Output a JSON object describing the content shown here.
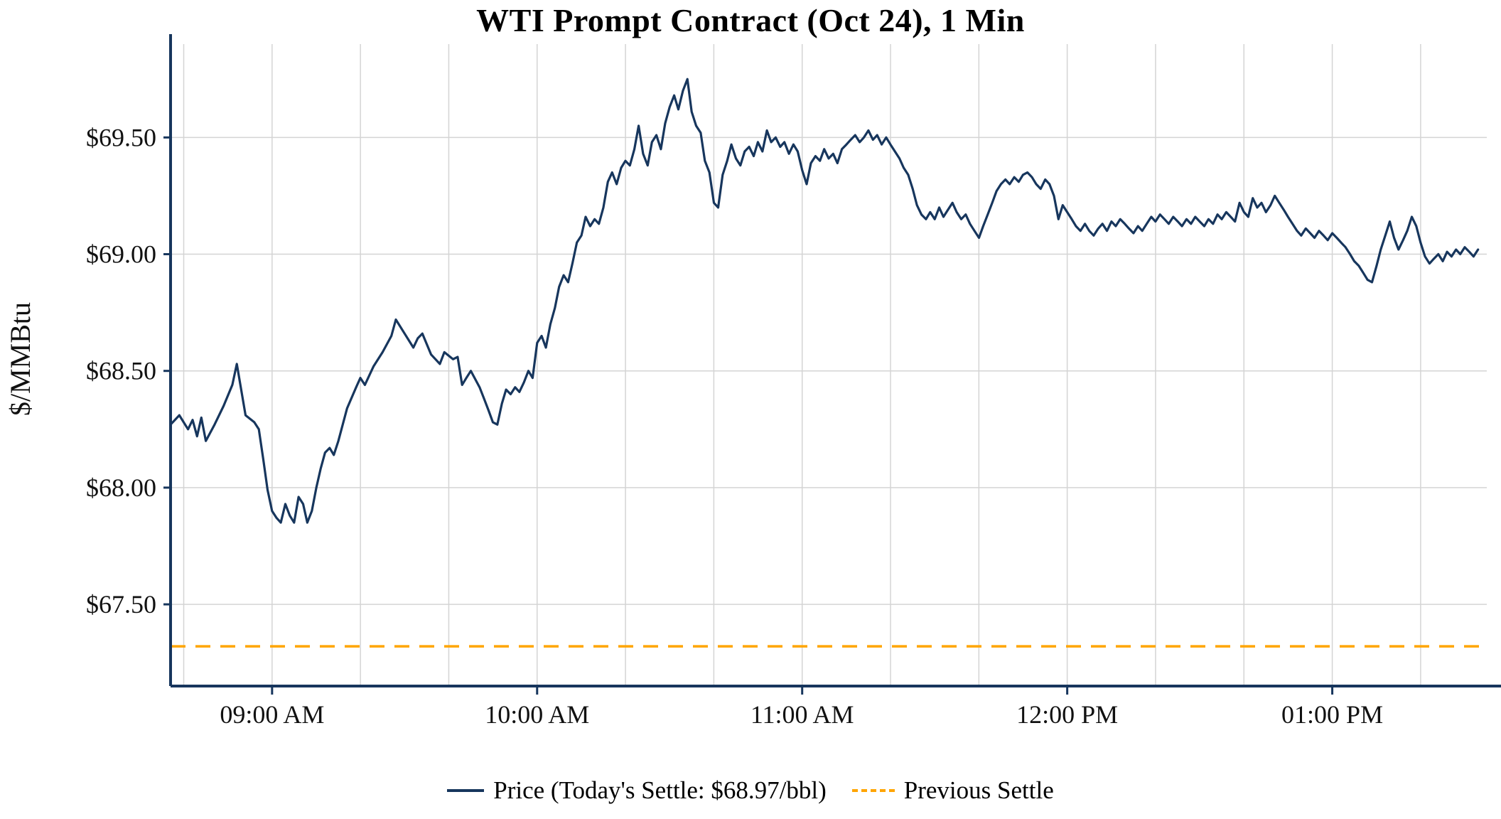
{
  "colors": {
    "price": "#17365d",
    "previous_settle": "#FFA500",
    "grid": "#d4d4d4",
    "axis": "#17365d",
    "text": "#111111"
  },
  "legend": {
    "price_label": "Price (Today's Settle: $68.97/bbl)",
    "previous_settle_label": "Previous Settle"
  },
  "chart_data": {
    "type": "line",
    "title": "WTI Prompt Contract (Oct 24), 1 Min",
    "xlabel": "",
    "ylabel": "$/MMBtu",
    "x_unit": "time_of_day_decimal_hours",
    "xlim": [
      8.617,
      13.583
    ],
    "ylim": [
      67.15,
      69.9
    ],
    "grid": true,
    "minor_x_grid_interval_hours": 0.3333,
    "xticks": [
      {
        "v": 9,
        "label": "09:00 AM"
      },
      {
        "v": 10,
        "label": "10:00 AM"
      },
      {
        "v": 11,
        "label": "11:00 AM"
      },
      {
        "v": 12,
        "label": "12:00 PM"
      },
      {
        "v": 13,
        "label": "01:00 PM"
      }
    ],
    "yticks": [
      {
        "v": 67.5,
        "label": "$67.50"
      },
      {
        "v": 68.0,
        "label": "$68.00"
      },
      {
        "v": 68.5,
        "label": "$68.50"
      },
      {
        "v": 69.0,
        "label": "$69.00"
      },
      {
        "v": 69.5,
        "label": "$69.50"
      }
    ],
    "todays_settle": 68.97,
    "previous_settle": 67.32,
    "series": [
      {
        "name": "Price",
        "style": "solid",
        "points": [
          [
            8.617,
            68.27
          ],
          [
            8.65,
            68.31
          ],
          [
            8.683,
            68.25
          ],
          [
            8.7,
            68.29
          ],
          [
            8.717,
            68.22
          ],
          [
            8.733,
            68.3
          ],
          [
            8.75,
            68.2
          ],
          [
            8.783,
            68.27
          ],
          [
            8.817,
            68.35
          ],
          [
            8.85,
            68.44
          ],
          [
            8.867,
            68.53
          ],
          [
            8.9,
            68.31
          ],
          [
            8.933,
            68.28
          ],
          [
            8.95,
            68.25
          ],
          [
            8.967,
            68.12
          ],
          [
            8.983,
            67.99
          ],
          [
            9.0,
            67.9
          ],
          [
            9.017,
            67.87
          ],
          [
            9.033,
            67.85
          ],
          [
            9.05,
            67.93
          ],
          [
            9.067,
            67.88
          ],
          [
            9.083,
            67.85
          ],
          [
            9.1,
            67.96
          ],
          [
            9.117,
            67.93
          ],
          [
            9.133,
            67.85
          ],
          [
            9.15,
            67.9
          ],
          [
            9.167,
            68.0
          ],
          [
            9.183,
            68.08
          ],
          [
            9.2,
            68.15
          ],
          [
            9.217,
            68.17
          ],
          [
            9.233,
            68.14
          ],
          [
            9.25,
            68.2
          ],
          [
            9.283,
            68.34
          ],
          [
            9.317,
            68.43
          ],
          [
            9.333,
            68.47
          ],
          [
            9.35,
            68.44
          ],
          [
            9.383,
            68.52
          ],
          [
            9.417,
            68.58
          ],
          [
            9.45,
            68.65
          ],
          [
            9.467,
            68.72
          ],
          [
            9.5,
            68.66
          ],
          [
            9.533,
            68.6
          ],
          [
            9.55,
            68.64
          ],
          [
            9.567,
            68.66
          ],
          [
            9.6,
            68.57
          ],
          [
            9.633,
            68.53
          ],
          [
            9.65,
            68.58
          ],
          [
            9.683,
            68.55
          ],
          [
            9.7,
            68.56
          ],
          [
            9.717,
            68.44
          ],
          [
            9.733,
            68.47
          ],
          [
            9.75,
            68.5
          ],
          [
            9.783,
            68.43
          ],
          [
            9.8,
            68.38
          ],
          [
            9.817,
            68.33
          ],
          [
            9.833,
            68.28
          ],
          [
            9.85,
            68.27
          ],
          [
            9.867,
            68.36
          ],
          [
            9.883,
            68.42
          ],
          [
            9.9,
            68.4
          ],
          [
            9.917,
            68.43
          ],
          [
            9.933,
            68.41
          ],
          [
            9.95,
            68.45
          ],
          [
            9.967,
            68.5
          ],
          [
            9.983,
            68.47
          ],
          [
            10.0,
            68.62
          ],
          [
            10.017,
            68.65
          ],
          [
            10.033,
            68.6
          ],
          [
            10.05,
            68.7
          ],
          [
            10.067,
            68.77
          ],
          [
            10.083,
            68.86
          ],
          [
            10.1,
            68.91
          ],
          [
            10.117,
            68.88
          ],
          [
            10.133,
            68.96
          ],
          [
            10.15,
            69.05
          ],
          [
            10.167,
            69.08
          ],
          [
            10.183,
            69.16
          ],
          [
            10.2,
            69.12
          ],
          [
            10.217,
            69.15
          ],
          [
            10.233,
            69.13
          ],
          [
            10.25,
            69.2
          ],
          [
            10.267,
            69.31
          ],
          [
            10.283,
            69.35
          ],
          [
            10.3,
            69.3
          ],
          [
            10.317,
            69.37
          ],
          [
            10.333,
            69.4
          ],
          [
            10.35,
            69.38
          ],
          [
            10.367,
            69.45
          ],
          [
            10.383,
            69.55
          ],
          [
            10.4,
            69.43
          ],
          [
            10.417,
            69.38
          ],
          [
            10.433,
            69.48
          ],
          [
            10.45,
            69.51
          ],
          [
            10.467,
            69.45
          ],
          [
            10.483,
            69.56
          ],
          [
            10.5,
            69.63
          ],
          [
            10.517,
            69.68
          ],
          [
            10.533,
            69.62
          ],
          [
            10.55,
            69.7
          ],
          [
            10.567,
            69.75
          ],
          [
            10.583,
            69.61
          ],
          [
            10.6,
            69.55
          ],
          [
            10.617,
            69.52
          ],
          [
            10.633,
            69.4
          ],
          [
            10.65,
            69.35
          ],
          [
            10.667,
            69.22
          ],
          [
            10.683,
            69.2
          ],
          [
            10.7,
            69.34
          ],
          [
            10.717,
            69.4
          ],
          [
            10.733,
            69.47
          ],
          [
            10.75,
            69.41
          ],
          [
            10.767,
            69.38
          ],
          [
            10.783,
            69.44
          ],
          [
            10.8,
            69.46
          ],
          [
            10.817,
            69.42
          ],
          [
            10.833,
            69.48
          ],
          [
            10.85,
            69.44
          ],
          [
            10.867,
            69.53
          ],
          [
            10.883,
            69.48
          ],
          [
            10.9,
            69.5
          ],
          [
            10.917,
            69.46
          ],
          [
            10.933,
            69.48
          ],
          [
            10.95,
            69.43
          ],
          [
            10.967,
            69.47
          ],
          [
            10.983,
            69.44
          ],
          [
            11.0,
            69.36
          ],
          [
            11.017,
            69.3
          ],
          [
            11.033,
            69.39
          ],
          [
            11.05,
            69.42
          ],
          [
            11.067,
            69.4
          ],
          [
            11.083,
            69.45
          ],
          [
            11.1,
            69.41
          ],
          [
            11.117,
            69.43
          ],
          [
            11.133,
            69.39
          ],
          [
            11.15,
            69.45
          ],
          [
            11.167,
            69.47
          ],
          [
            11.183,
            69.49
          ],
          [
            11.2,
            69.51
          ],
          [
            11.217,
            69.48
          ],
          [
            11.233,
            69.5
          ],
          [
            11.25,
            69.53
          ],
          [
            11.267,
            69.49
          ],
          [
            11.283,
            69.51
          ],
          [
            11.3,
            69.47
          ],
          [
            11.317,
            69.5
          ],
          [
            11.333,
            69.47
          ],
          [
            11.35,
            69.44
          ],
          [
            11.367,
            69.41
          ],
          [
            11.383,
            69.37
          ],
          [
            11.4,
            69.34
          ],
          [
            11.417,
            69.28
          ],
          [
            11.433,
            69.21
          ],
          [
            11.45,
            69.17
          ],
          [
            11.467,
            69.15
          ],
          [
            11.483,
            69.18
          ],
          [
            11.5,
            69.15
          ],
          [
            11.517,
            69.2
          ],
          [
            11.533,
            69.16
          ],
          [
            11.55,
            69.19
          ],
          [
            11.567,
            69.22
          ],
          [
            11.583,
            69.18
          ],
          [
            11.6,
            69.15
          ],
          [
            11.617,
            69.17
          ],
          [
            11.633,
            69.13
          ],
          [
            11.65,
            69.1
          ],
          [
            11.667,
            69.07
          ],
          [
            11.683,
            69.12
          ],
          [
            11.7,
            69.17
          ],
          [
            11.717,
            69.22
          ],
          [
            11.733,
            69.27
          ],
          [
            11.75,
            69.3
          ],
          [
            11.767,
            69.32
          ],
          [
            11.783,
            69.3
          ],
          [
            11.8,
            69.33
          ],
          [
            11.817,
            69.31
          ],
          [
            11.833,
            69.34
          ],
          [
            11.85,
            69.35
          ],
          [
            11.867,
            69.33
          ],
          [
            11.883,
            69.3
          ],
          [
            11.9,
            69.28
          ],
          [
            11.917,
            69.32
          ],
          [
            11.933,
            69.3
          ],
          [
            11.95,
            69.25
          ],
          [
            11.967,
            69.15
          ],
          [
            11.983,
            69.21
          ],
          [
            12.0,
            69.18
          ],
          [
            12.017,
            69.15
          ],
          [
            12.033,
            69.12
          ],
          [
            12.05,
            69.1
          ],
          [
            12.067,
            69.13
          ],
          [
            12.083,
            69.1
          ],
          [
            12.1,
            69.08
          ],
          [
            12.117,
            69.11
          ],
          [
            12.133,
            69.13
          ],
          [
            12.15,
            69.1
          ],
          [
            12.167,
            69.14
          ],
          [
            12.183,
            69.12
          ],
          [
            12.2,
            69.15
          ],
          [
            12.217,
            69.13
          ],
          [
            12.233,
            69.11
          ],
          [
            12.25,
            69.09
          ],
          [
            12.267,
            69.12
          ],
          [
            12.283,
            69.1
          ],
          [
            12.3,
            69.13
          ],
          [
            12.317,
            69.16
          ],
          [
            12.333,
            69.14
          ],
          [
            12.35,
            69.17
          ],
          [
            12.367,
            69.15
          ],
          [
            12.383,
            69.13
          ],
          [
            12.4,
            69.16
          ],
          [
            12.417,
            69.14
          ],
          [
            12.433,
            69.12
          ],
          [
            12.45,
            69.15
          ],
          [
            12.467,
            69.13
          ],
          [
            12.483,
            69.16
          ],
          [
            12.5,
            69.14
          ],
          [
            12.517,
            69.12
          ],
          [
            12.533,
            69.15
          ],
          [
            12.55,
            69.13
          ],
          [
            12.567,
            69.17
          ],
          [
            12.583,
            69.15
          ],
          [
            12.6,
            69.18
          ],
          [
            12.617,
            69.16
          ],
          [
            12.633,
            69.14
          ],
          [
            12.65,
            69.22
          ],
          [
            12.667,
            69.18
          ],
          [
            12.683,
            69.16
          ],
          [
            12.7,
            69.24
          ],
          [
            12.717,
            69.2
          ],
          [
            12.733,
            69.22
          ],
          [
            12.75,
            69.18
          ],
          [
            12.767,
            69.21
          ],
          [
            12.783,
            69.25
          ],
          [
            12.8,
            69.22
          ],
          [
            12.817,
            69.19
          ],
          [
            12.833,
            69.16
          ],
          [
            12.85,
            69.13
          ],
          [
            12.867,
            69.1
          ],
          [
            12.883,
            69.08
          ],
          [
            12.9,
            69.11
          ],
          [
            12.917,
            69.09
          ],
          [
            12.933,
            69.07
          ],
          [
            12.95,
            69.1
          ],
          [
            12.967,
            69.08
          ],
          [
            12.983,
            69.06
          ],
          [
            13.0,
            69.09
          ],
          [
            13.017,
            69.07
          ],
          [
            13.033,
            69.05
          ],
          [
            13.05,
            69.03
          ],
          [
            13.067,
            69.0
          ],
          [
            13.083,
            68.97
          ],
          [
            13.1,
            68.95
          ],
          [
            13.117,
            68.92
          ],
          [
            13.133,
            68.89
          ],
          [
            13.15,
            68.88
          ],
          [
            13.167,
            68.95
          ],
          [
            13.183,
            69.02
          ],
          [
            13.2,
            69.08
          ],
          [
            13.217,
            69.14
          ],
          [
            13.233,
            69.07
          ],
          [
            13.25,
            69.02
          ],
          [
            13.267,
            69.06
          ],
          [
            13.283,
            69.1
          ],
          [
            13.3,
            69.16
          ],
          [
            13.317,
            69.12
          ],
          [
            13.333,
            69.05
          ],
          [
            13.35,
            68.99
          ],
          [
            13.367,
            68.96
          ],
          [
            13.383,
            68.98
          ],
          [
            13.4,
            69.0
          ],
          [
            13.417,
            68.97
          ],
          [
            13.433,
            69.01
          ],
          [
            13.45,
            68.99
          ],
          [
            13.467,
            69.02
          ],
          [
            13.483,
            69.0
          ],
          [
            13.5,
            69.03
          ],
          [
            13.517,
            69.01
          ],
          [
            13.533,
            68.99
          ],
          [
            13.55,
            69.02
          ]
        ]
      },
      {
        "name": "Previous Settle",
        "style": "dashed",
        "hline_value": 67.32
      }
    ]
  }
}
